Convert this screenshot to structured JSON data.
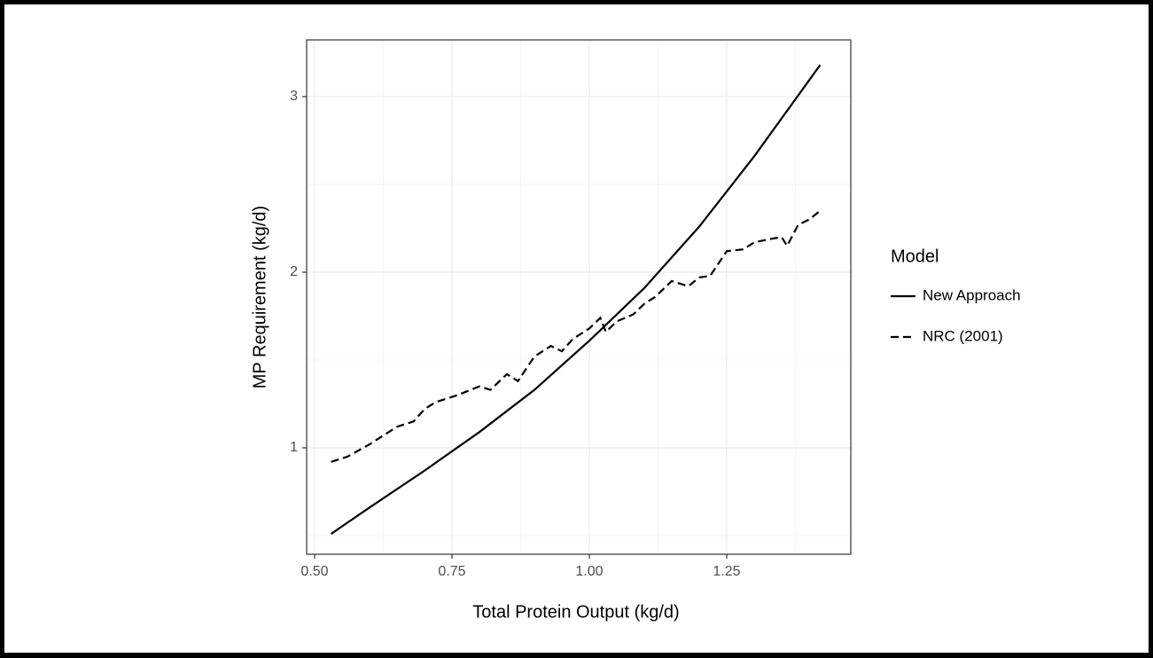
{
  "chart_data": {
    "type": "line",
    "x_label": "Total Protein Output (kg/d)",
    "y_label": "MP Requirement (kg/d)",
    "legend_title": "Model",
    "legend_position": "right",
    "grid": true,
    "xlim": [
      0.4855,
      1.4758
    ],
    "ylim": [
      0.394,
      3.323
    ],
    "xticks": [
      {
        "value": 0.5,
        "label": "0.50"
      },
      0.75,
      {
        "value": 1.0,
        "label": "1.00"
      },
      1.25
    ],
    "yticks": [
      1,
      2,
      3
    ],
    "xminor": [
      0.625,
      0.875,
      1.125,
      1.375
    ],
    "yminor": [
      0.5,
      1.5,
      2.5
    ],
    "series": [
      {
        "name": "New Approach",
        "color": "#000000",
        "linetype": "solid",
        "x": [
          0.53,
          0.6,
          0.7,
          0.8,
          0.9,
          1.0,
          1.1,
          1.2,
          1.3,
          1.42
        ],
        "values": [
          0.51,
          0.66,
          0.87,
          1.09,
          1.33,
          1.61,
          1.91,
          2.26,
          2.66,
          3.18
        ]
      },
      {
        "name": "NRC (2001)",
        "color": "#000000",
        "linetype": "dashed",
        "x": [
          0.53,
          0.56,
          0.6,
          0.65,
          0.68,
          0.7,
          0.72,
          0.76,
          0.8,
          0.82,
          0.85,
          0.87,
          0.9,
          0.93,
          0.95,
          0.97,
          1.0,
          1.02,
          1.03,
          1.05,
          1.08,
          1.1,
          1.12,
          1.15,
          1.18,
          1.2,
          1.22,
          1.25,
          1.28,
          1.3,
          1.33,
          1.35,
          1.36,
          1.38,
          1.4,
          1.42
        ],
        "values": [
          0.92,
          0.95,
          1.02,
          1.12,
          1.15,
          1.22,
          1.26,
          1.3,
          1.35,
          1.33,
          1.42,
          1.38,
          1.52,
          1.58,
          1.55,
          1.62,
          1.68,
          1.74,
          1.66,
          1.72,
          1.76,
          1.82,
          1.86,
          1.95,
          1.92,
          1.97,
          1.98,
          2.12,
          2.13,
          2.17,
          2.19,
          2.2,
          2.15,
          2.27,
          2.3,
          2.35
        ]
      }
    ]
  }
}
